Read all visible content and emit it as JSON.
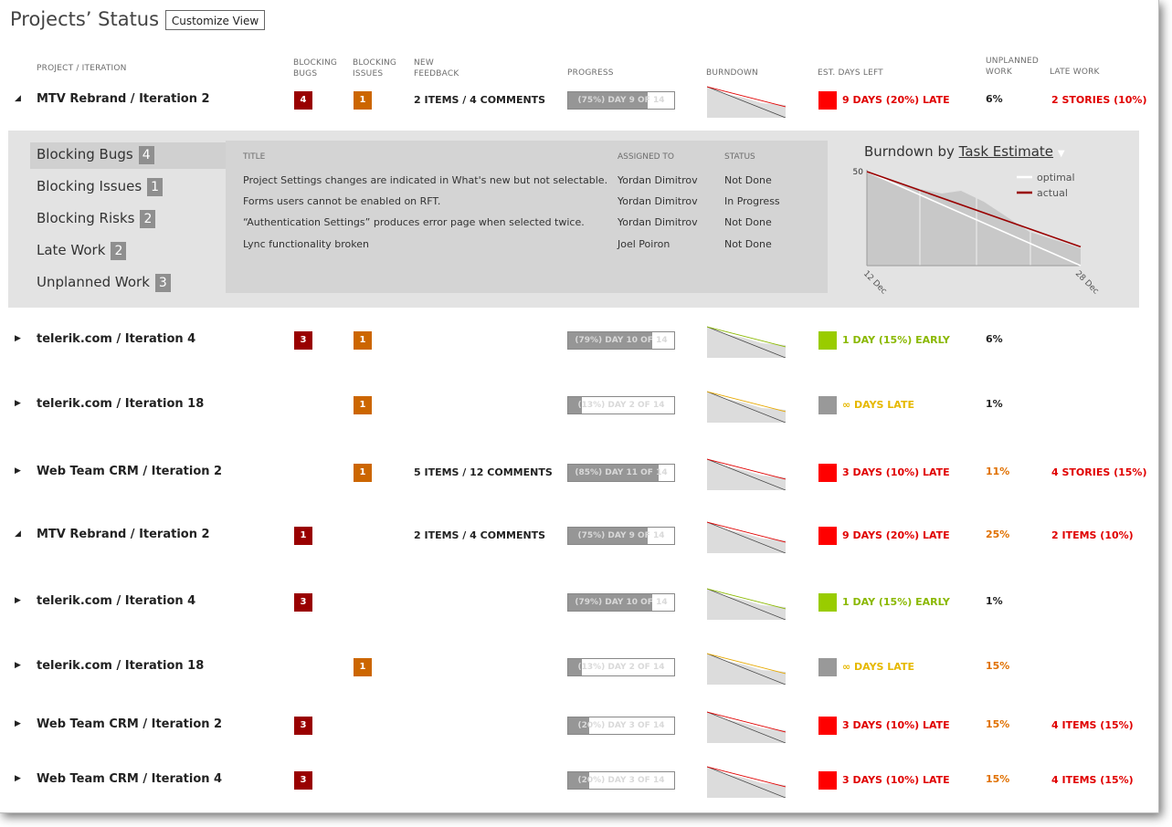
{
  "title": "Projects’ Status",
  "customize_button": "Customize View",
  "headers": {
    "project": "PROJECT / ITERATION",
    "blocking_bugs": [
      "BLOCKING",
      "BUGS"
    ],
    "blocking_issues": [
      "BLOCKING",
      "ISSUES"
    ],
    "new_feedback": [
      "NEW",
      "FEEDBACK"
    ],
    "progress": "PROGRESS",
    "burndown": "BURNDOWN",
    "est_days_left": "EST. DAYS LEFT",
    "unplanned_work": [
      "UNPLANNED",
      "WORK"
    ],
    "late_work": "LATE WORK"
  },
  "colors": {
    "bug": "#990000",
    "issue": "#cc6600",
    "late": "#ff0000",
    "early": "#99cc00",
    "unknown": "#999999",
    "panel": "#e3e3e3"
  },
  "rows": [
    {
      "expanded": true,
      "name": "MTV Rebrand / Iteration 2",
      "bugs": "4",
      "issues": "1",
      "feedback": "2 ITEMS / 4 COMMENTS",
      "progress_pct": 75,
      "progress_text": "(75%) DAY 9 OF 14",
      "status": "late",
      "est": "9 DAYS (20%) LATE",
      "unplanned": "6%",
      "unplanned_color": "dark",
      "late_work": "2 STORIES (10%)"
    },
    {
      "expanded": false,
      "name": "telerik.com / Iteration 4",
      "bugs": "3",
      "issues": "1",
      "feedback": "",
      "progress_pct": 79,
      "progress_text": "(79%) DAY 10 OF 14",
      "status": "early",
      "est": "1 DAY (15%) EARLY",
      "unplanned": "6%",
      "unplanned_color": "dark",
      "late_work": ""
    },
    {
      "expanded": false,
      "name": "telerik.com / Iteration 18",
      "bugs": "",
      "issues": "1",
      "feedback": "",
      "progress_pct": 13,
      "progress_text": "(13%) DAY 2 OF 14",
      "status": "unknown",
      "est": "∞ DAYS LATE",
      "unplanned": "1%",
      "unplanned_color": "dark",
      "late_work": ""
    },
    {
      "expanded": false,
      "name": "Web Team CRM / Iteration 2",
      "bugs": "",
      "issues": "1",
      "feedback": "5 ITEMS / 12 COMMENTS",
      "progress_pct": 85,
      "progress_text": "(85%) DAY 11 OF 14",
      "status": "late",
      "est": "3 DAYS (10%) LATE",
      "unplanned": "11%",
      "unplanned_color": "orange",
      "late_work": "4 STORIES (15%)"
    },
    {
      "expanded": true,
      "name": "MTV Rebrand / Iteration 2",
      "bugs": "1",
      "issues": "",
      "feedback": "2 ITEMS / 4 COMMENTS",
      "progress_pct": 75,
      "progress_text": "(75%) DAY 9 OF 14",
      "status": "late",
      "est": "9 DAYS (20%) LATE",
      "unplanned": "25%",
      "unplanned_color": "orange",
      "late_work": "2 ITEMS (10%)"
    },
    {
      "expanded": false,
      "name": "telerik.com / Iteration 4",
      "bugs": "3",
      "issues": "",
      "feedback": "",
      "progress_pct": 79,
      "progress_text": "(79%) DAY 10 OF 14",
      "status": "early",
      "est": "1 DAY (15%) EARLY",
      "unplanned": "1%",
      "unplanned_color": "dark",
      "late_work": ""
    },
    {
      "expanded": false,
      "name": "telerik.com / Iteration 18",
      "bugs": "",
      "issues": "1",
      "feedback": "",
      "progress_pct": 13,
      "progress_text": "(13%) DAY 2 OF 14",
      "status": "unknown",
      "est": "∞ DAYS LATE",
      "unplanned": "15%",
      "unplanned_color": "orange",
      "late_work": ""
    },
    {
      "expanded": false,
      "name": "Web Team CRM / Iteration 2",
      "bugs": "3",
      "issues": "",
      "feedback": "",
      "progress_pct": 20,
      "progress_text": "(20%) DAY 3 OF 14",
      "status": "late",
      "est": "3 DAYS (10%) LATE",
      "unplanned": "15%",
      "unplanned_color": "orange",
      "late_work": "4 ITEMS (15%)"
    },
    {
      "expanded": false,
      "name": "Web Team CRM / Iteration 4",
      "bugs": "3",
      "issues": "",
      "feedback": "",
      "progress_pct": 20,
      "progress_text": "(20%) DAY 3 OF 14",
      "status": "late",
      "est": "3 DAYS (10%) LATE",
      "unplanned": "15%",
      "unplanned_color": "orange",
      "late_work": "4 ITEMS (15%)"
    }
  ],
  "detail": {
    "categories": [
      {
        "label": "Blocking Bugs",
        "count": "4",
        "selected": true
      },
      {
        "label": "Blocking Issues",
        "count": "1",
        "selected": false
      },
      {
        "label": "Blocking Risks",
        "count": "2",
        "selected": false
      },
      {
        "label": "Late Work",
        "count": "2",
        "selected": false
      },
      {
        "label": "Unplanned Work",
        "count": "3",
        "selected": false
      }
    ],
    "columns": {
      "title": "TITLE",
      "assigned": "ASSIGNED TO",
      "status": "STATUS"
    },
    "items": [
      {
        "title": "Project Settings changes are indicated in What's new but not selectable.",
        "assigned": "Yordan Dimitrov",
        "status": "Not Done"
      },
      {
        "title": "Forms users cannot be enabled on RFT.",
        "assigned": "Yordan Dimitrov",
        "status": "In Progress"
      },
      {
        "title": "“Authentication Settings” produces error page when selected twice.",
        "assigned": "Yordan Dimitrov",
        "status": "Not Done"
      },
      {
        "title": "Lync functionality broken",
        "assigned": "Joel Poiron",
        "status": "Not Done"
      }
    ],
    "chart_title_prefix": "Burndown by",
    "chart_title_link": "Task Estimate",
    "chart_data": {
      "type": "line",
      "title": "Burndown by Task Estimate",
      "ylim": [
        0,
        50
      ],
      "y_tick": "50",
      "x_ticks": [
        "12 Dec",
        "28 Dec"
      ],
      "series": [
        {
          "name": "optimal",
          "color": "#ffffff",
          "values": [
            50,
            0
          ]
        },
        {
          "name": "actual",
          "color": "#990000",
          "values": [
            50,
            10
          ]
        }
      ],
      "legend": "top-right"
    }
  }
}
